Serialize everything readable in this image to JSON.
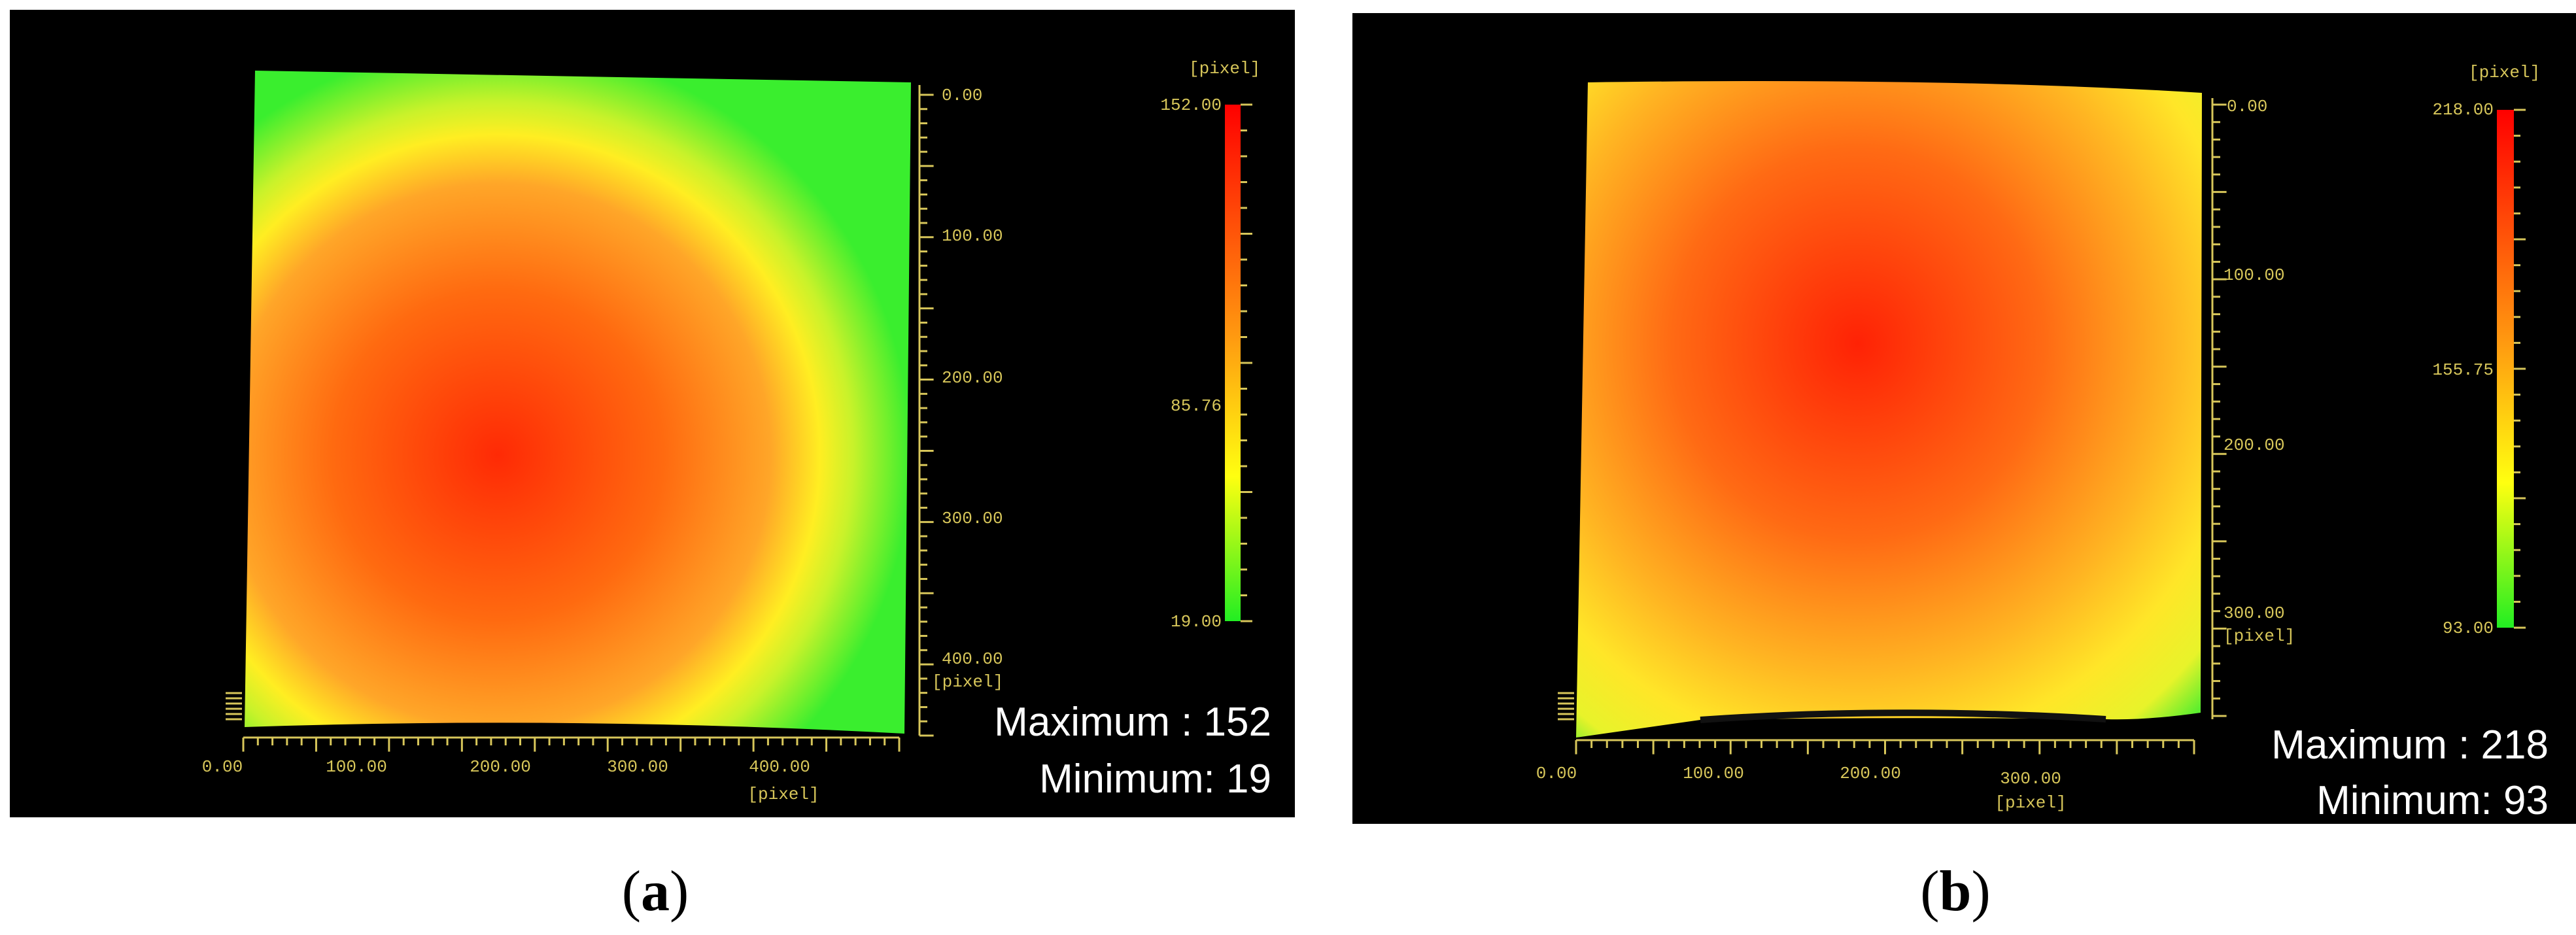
{
  "chart_data": [
    {
      "type": "heatmap",
      "caption": {
        "open": "(",
        "letter": "a",
        "close": ")"
      },
      "unit_top": "[pixel]",
      "x_unit": "[pixel]",
      "y_unit": "[pixel]",
      "x_ticks": [
        "0.00",
        "100.00",
        "200.00",
        "300.00",
        "400.00"
      ],
      "y_ticks": [
        "0.00",
        "100.00",
        "200.00",
        "300.00",
        "400.00"
      ],
      "colorbar_labels": [
        "152.00",
        "85.76",
        "19.00"
      ],
      "value_range": [
        19,
        152
      ],
      "stats": {
        "max_label": "Maximum",
        "max_sep": " : ",
        "max_value": "152",
        "min_label": "Minimum:",
        "min_value": "19"
      },
      "distribution": "radial dome, peak left of center near x≈200, y≈250; green at corners"
    },
    {
      "type": "heatmap",
      "caption": {
        "open": "(",
        "letter": "b",
        "close": ")"
      },
      "unit_top": "[pixel]",
      "x_unit": "[pixel]",
      "y_unit": "[pixel]",
      "x_ticks": [
        "0.00",
        "100.00",
        "200.00",
        "300.00"
      ],
      "y_ticks": [
        "0.00",
        "100.00",
        "200.00",
        "300.00"
      ],
      "colorbar_labels": [
        "218.00",
        "155.75",
        "93.00"
      ],
      "value_range": [
        93,
        218
      ],
      "stats": {
        "max_label": "Maximum",
        "max_sep": " : ",
        "max_value": "218",
        "min_label": "Minimum:",
        "min_value": "93"
      },
      "distribution": "radial dome, peak near x≈200, y≈150; yellow at corners"
    }
  ],
  "colors": {
    "panel_bg": "#000000",
    "axis": "#d7c65a",
    "low": "#33ee33",
    "mid": "#ffee00",
    "high": "#ff2200",
    "stat_text": "#ffffff"
  }
}
